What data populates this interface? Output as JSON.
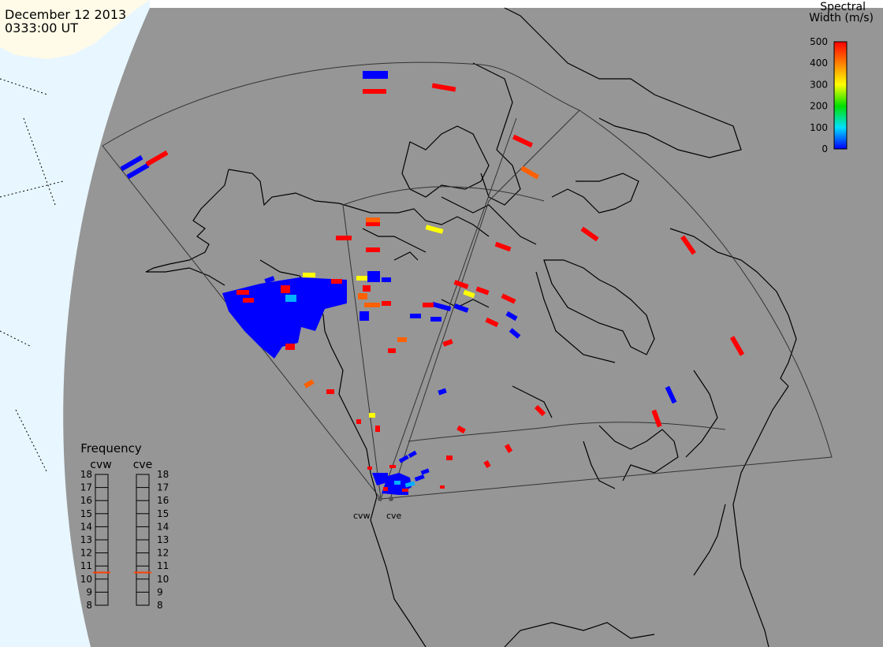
{
  "header": {
    "date": "December 12 2013",
    "time": "0333:00 UT"
  },
  "colorbar": {
    "title_line1": "Spectral",
    "title_line2": "Width (m/s)",
    "ticks": [
      "500",
      "400",
      "300",
      "200",
      "100",
      "0"
    ],
    "colors": [
      "#ff0000",
      "#ff8000",
      "#ffff00",
      "#00e000",
      "#00e0ff",
      "#0000ff"
    ]
  },
  "frequency_panel": {
    "title": "Frequency",
    "radars": [
      "cvw",
      "cve"
    ],
    "ticks": [
      "18",
      "17",
      "16",
      "15",
      "14",
      "13",
      "12",
      "11",
      "10",
      "9",
      "8"
    ],
    "current_frequency_mhz": [
      10.5,
      10.5
    ],
    "marker_color": "#ff4000"
  },
  "sites": {
    "labels": [
      "cvw",
      "cve"
    ]
  },
  "map": {
    "background_color": "#969696",
    "ocean_color": "#e8f6ff",
    "land_color": "#fffbe8",
    "coast_color": "#000000",
    "fov_color": "#000000"
  },
  "echo_colors": {
    "blue": "#0000ff",
    "cyan": "#00b0ff",
    "yellow": "#ffff00",
    "orange": "#ff6000",
    "red": "#ff0000"
  }
}
